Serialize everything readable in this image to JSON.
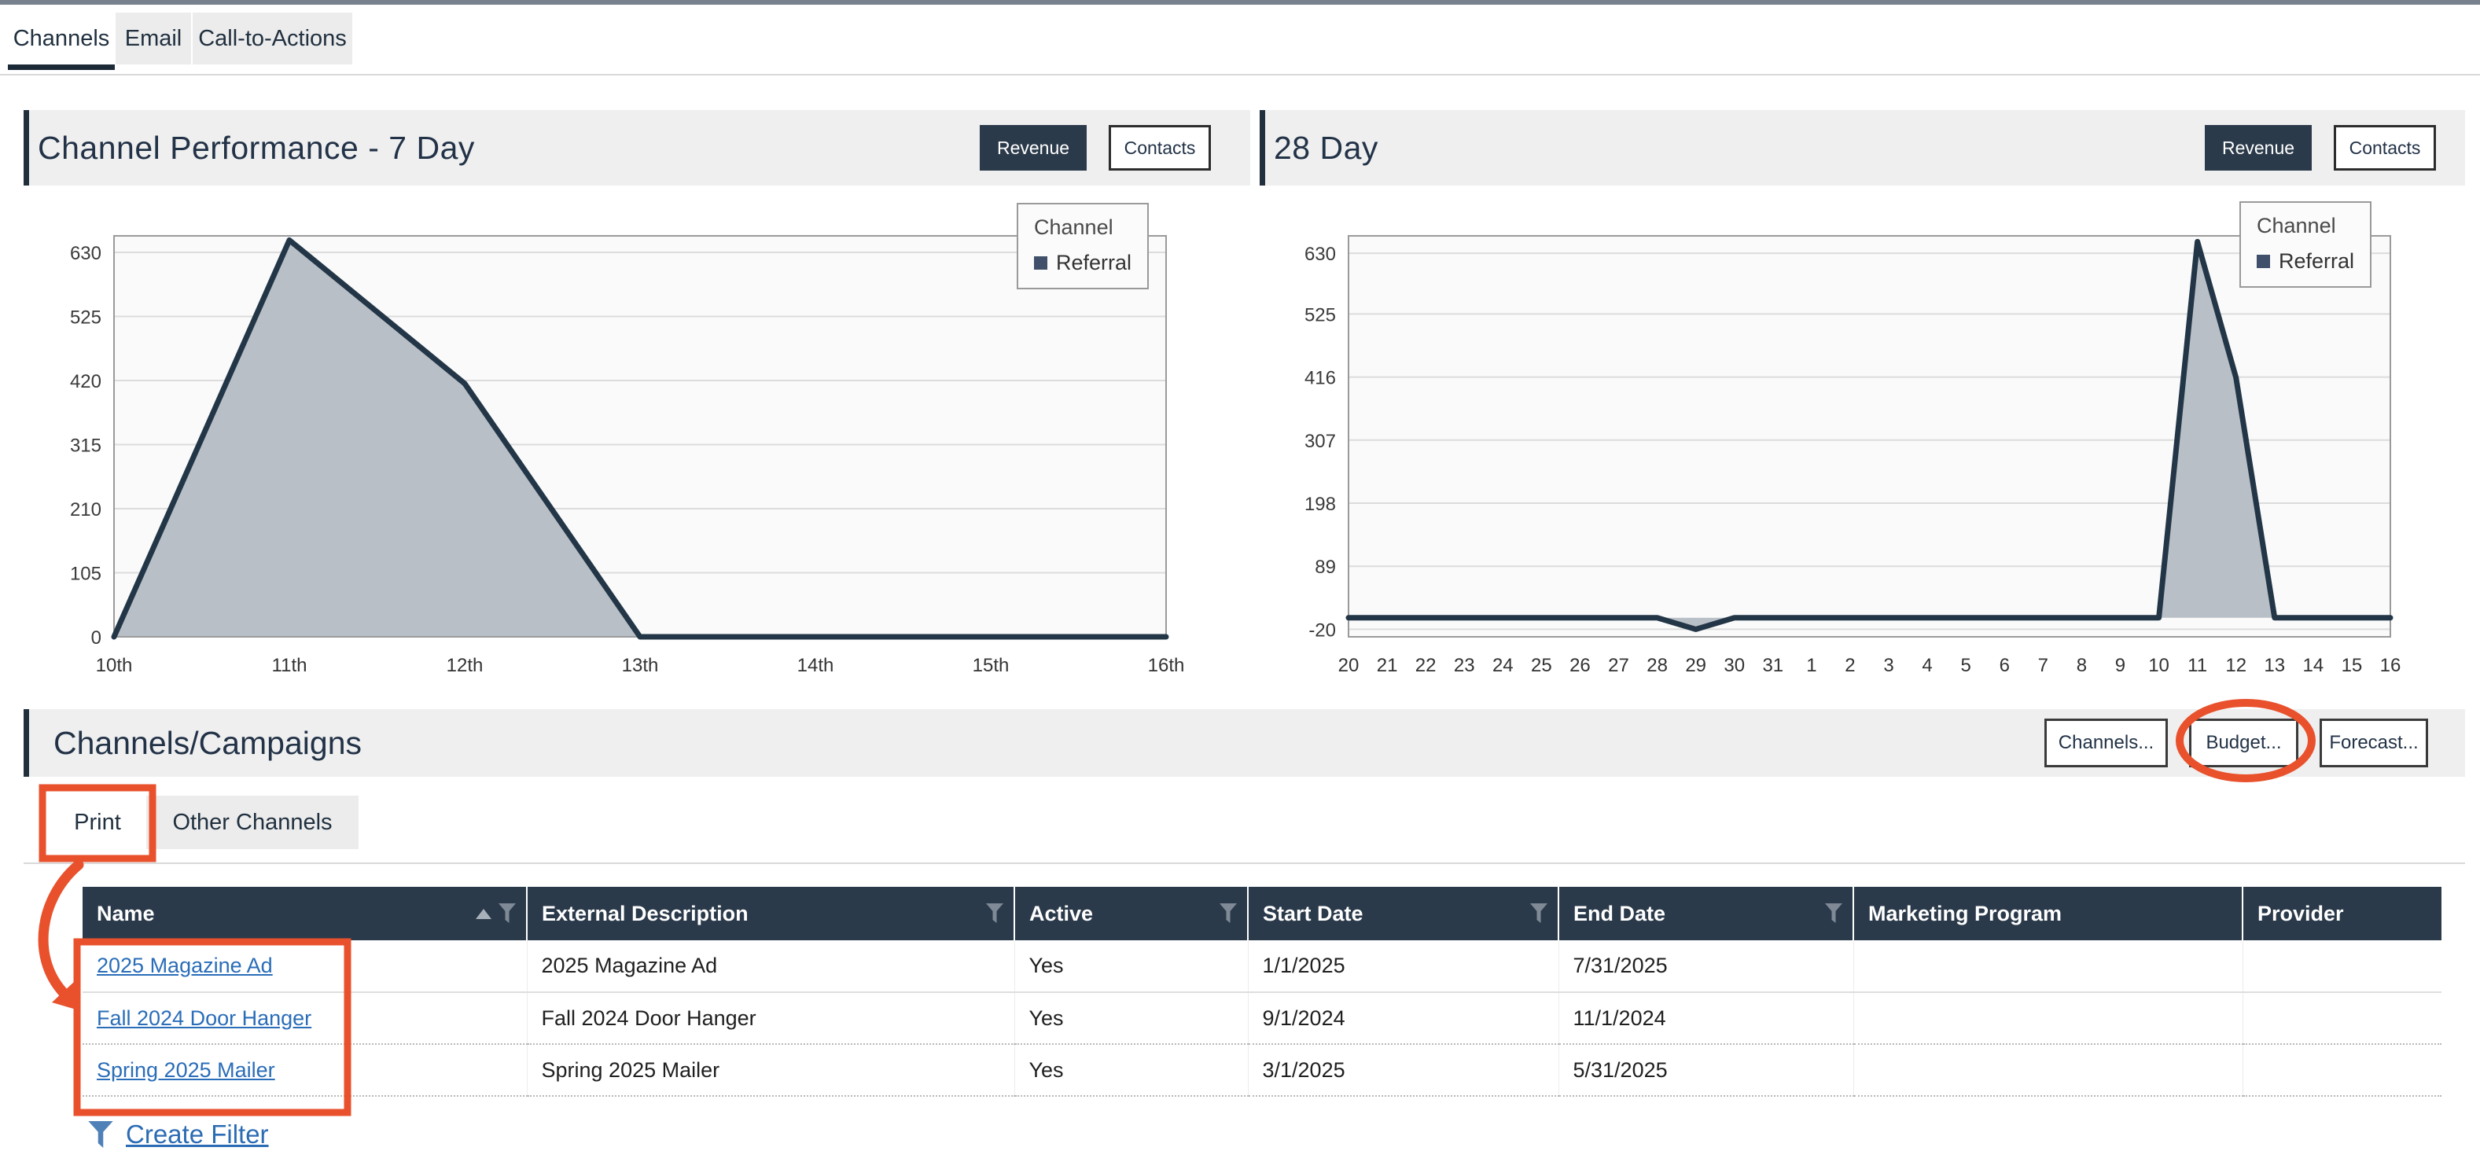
{
  "page": {
    "top_tabs": [
      {
        "label": "Channels",
        "active": true
      },
      {
        "label": "Email",
        "active": false
      },
      {
        "label": "Call-to-Actions",
        "active": false
      }
    ]
  },
  "panels": [
    {
      "title": "Channel Performance - 7 Day",
      "revenue_button": "Revenue",
      "contacts_button": "Contacts"
    },
    {
      "title": "28 Day",
      "revenue_button": "Revenue",
      "contacts_button": "Contacts"
    }
  ],
  "chart_data": [
    {
      "type": "area",
      "panel": "Channel Performance - 7 Day",
      "categories": [
        "10th",
        "11th",
        "12th",
        "13th",
        "14th",
        "15th",
        "16th"
      ],
      "series": [
        {
          "name": "Referral",
          "values": [
            0,
            650,
            415,
            0,
            0,
            0,
            0
          ]
        }
      ],
      "legend": {
        "title": "Channel",
        "entries": [
          "Referral"
        ],
        "position": "top-right"
      },
      "yticks": [
        0,
        105,
        210,
        315,
        420,
        525,
        630
      ],
      "ylim": [
        0,
        657
      ],
      "grid": "horizontal",
      "line_color": "#233647",
      "fill_color": "#b9bfc6",
      "plot_bg": "#fafafa"
    },
    {
      "type": "area",
      "panel": "28 Day",
      "categories": [
        "20",
        "21",
        "22",
        "23",
        "24",
        "25",
        "26",
        "27",
        "28",
        "29",
        "30",
        "31",
        "1",
        "2",
        "3",
        "4",
        "5",
        "6",
        "7",
        "8",
        "9",
        "10",
        "11",
        "12",
        "13",
        "14",
        "15",
        "16"
      ],
      "series": [
        {
          "name": "Referral",
          "values": [
            0,
            0,
            0,
            0,
            0,
            0,
            0,
            0,
            0,
            -20,
            0,
            0,
            0,
            0,
            0,
            0,
            0,
            0,
            0,
            0,
            0,
            0,
            650,
            415,
            0,
            0,
            0,
            0
          ]
        }
      ],
      "legend": {
        "title": "Channel",
        "entries": [
          "Referral"
        ],
        "position": "top-right"
      },
      "yticks": [
        -20,
        89,
        198,
        307,
        416,
        525,
        630
      ],
      "ylim": [
        -33,
        660
      ],
      "grid": "horizontal",
      "line_color": "#233647",
      "fill_color": "#b9bfc6",
      "plot_bg": "#fafafa"
    }
  ],
  "campaigns": {
    "title": "Channels/Campaigns",
    "buttons": [
      {
        "label": "Channels...",
        "annotated": false
      },
      {
        "label": "Budget...",
        "annotated": true
      },
      {
        "label": "Forecast...",
        "annotated": false
      }
    ],
    "tabs": [
      {
        "label": "Print",
        "active": true
      },
      {
        "label": "Other Channels",
        "active": false
      }
    ]
  },
  "table": {
    "columns": [
      {
        "label": "Name",
        "filter": true,
        "sorted": "asc"
      },
      {
        "label": "External Description",
        "filter": true
      },
      {
        "label": "Active",
        "filter": true
      },
      {
        "label": "Start Date",
        "filter": true
      },
      {
        "label": "End Date",
        "filter": true
      },
      {
        "label": "Marketing Program",
        "filter": false
      },
      {
        "label": "Provider",
        "filter": false
      }
    ],
    "rows": [
      {
        "name": "2025 Magazine Ad",
        "external_description": "2025 Magazine Ad",
        "active": "Yes",
        "start_date": "1/1/2025",
        "end_date": "7/31/2025",
        "marketing_program": "",
        "provider": ""
      },
      {
        "name": "Fall 2024 Door Hanger",
        "external_description": "Fall 2024 Door Hanger",
        "active": "Yes",
        "start_date": "9/1/2024",
        "end_date": "11/1/2024",
        "marketing_program": "",
        "provider": ""
      },
      {
        "name": "Spring 2025 Mailer",
        "external_description": "Spring 2025 Mailer",
        "active": "Yes",
        "start_date": "3/1/2025",
        "end_date": "5/31/2025",
        "marketing_program": "",
        "provider": ""
      }
    ],
    "create_filter_label": "Create Filter"
  },
  "colors": {
    "navy": "#2b3a4a",
    "accent_bar": "#22303e",
    "annotation": "#e8512c",
    "link": "#2a6db8",
    "header_bg": "#efefef",
    "tab_bg": "#ececec",
    "chart_line": "#233647",
    "chart_fill": "#b9bfc6"
  }
}
